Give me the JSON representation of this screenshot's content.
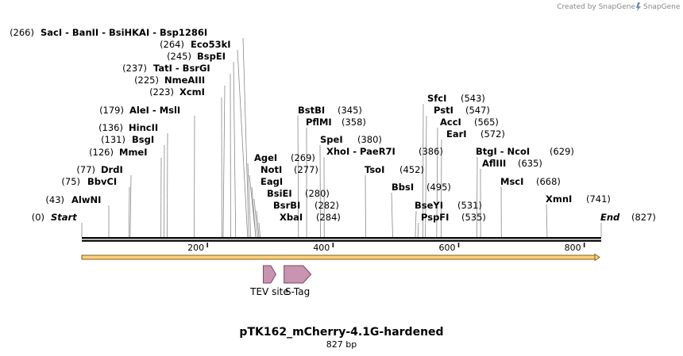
{
  "credit": "Created by SnapGene",
  "title": "pTK162_mCherry-4.1G-hardened",
  "subtitle": "827 bp",
  "sequence_length": 827,
  "axis_ticks": [
    "200",
    "400",
    "600",
    "800"
  ],
  "axis_tick_values": [
    200,
    400,
    600,
    800
  ],
  "start_label": {
    "num": "(0)",
    "name": "Start"
  },
  "end_label": {
    "num": "(827)",
    "name": "End"
  },
  "sites": [
    {
      "id": "alwni",
      "num": "(43)",
      "names": [
        "AlwNI"
      ],
      "pos": 43
    },
    {
      "id": "bbvci",
      "num": "(75)",
      "names": [
        "BbvCI"
      ],
      "pos": 75
    },
    {
      "id": "drdi",
      "num": "(77)",
      "names": [
        "DrdI"
      ],
      "pos": 77
    },
    {
      "id": "mmei",
      "num": "(126)",
      "names": [
        "MmeI"
      ],
      "pos": 126
    },
    {
      "id": "bsgi",
      "num": "(131)",
      "names": [
        "BsgI"
      ],
      "pos": 131
    },
    {
      "id": "hincii",
      "num": "(136)",
      "names": [
        "HincII"
      ],
      "pos": 136
    },
    {
      "id": "alei",
      "num": "(179)",
      "names": [
        "AleI",
        "MslI"
      ],
      "pos": 179
    },
    {
      "id": "xcmi",
      "num": "(223)",
      "names": [
        "XcmI"
      ],
      "pos": 223
    },
    {
      "id": "nmeaiii",
      "num": "(225)",
      "names": [
        "NmeAIII"
      ],
      "pos": 225
    },
    {
      "id": "tati",
      "num": "(237)",
      "names": [
        "TatI",
        "BsrGI"
      ],
      "pos": 237
    },
    {
      "id": "bspei",
      "num": "(245)",
      "names": [
        "BspEI"
      ],
      "pos": 245
    },
    {
      "id": "eco53ki",
      "num": "(264)",
      "names": [
        "Eco53kI"
      ],
      "pos": 264
    },
    {
      "id": "saci",
      "num": "(266)",
      "names": [
        "SacI",
        "BanII",
        "BsiHKAI",
        "Bsp1286I"
      ],
      "pos": 266
    },
    {
      "id": "agei",
      "num": "",
      "names": [
        "AgeI"
      ],
      "pos": 269
    },
    {
      "id": "noti",
      "num": "",
      "names": [
        "NotI"
      ],
      "pos": 277
    },
    {
      "id": "eagi",
      "num": "",
      "names": [
        "EagI"
      ],
      "pos": 277
    },
    {
      "id": "bsiei",
      "num": "(280)",
      "names": [
        "BsiEI"
      ],
      "pos": 280
    },
    {
      "id": "bsrbi",
      "num": "(282)",
      "names": [
        "BsrBI"
      ],
      "pos": 282
    },
    {
      "id": "xbai",
      "num": "(284)",
      "names": [
        "XbaI"
      ],
      "pos": 284
    },
    {
      "id": "agei-num",
      "num": "(269)",
      "names": [],
      "pos": 269
    },
    {
      "id": "noti-num",
      "num": "(277)",
      "names": [],
      "pos": 277
    },
    {
      "id": "bstbi",
      "num": "(345)",
      "names": [
        "BstBI"
      ],
      "pos": 345
    },
    {
      "id": "pflmi",
      "num": "(358)",
      "names": [
        "PflMI"
      ],
      "pos": 358
    },
    {
      "id": "spei",
      "num": "(380)",
      "names": [
        "SpeI"
      ],
      "pos": 380
    },
    {
      "id": "xhoi",
      "num": "(386)",
      "names": [
        "XhoI",
        "PaeR7I"
      ],
      "pos": 386
    },
    {
      "id": "tsoi",
      "num": "(452)",
      "names": [
        "TsoI"
      ],
      "pos": 452
    },
    {
      "id": "bbsi",
      "num": "(495)",
      "names": [
        "BbsI"
      ],
      "pos": 495
    },
    {
      "id": "bseyi",
      "num": "(531)",
      "names": [
        "BseYI"
      ],
      "pos": 531
    },
    {
      "id": "pspfi",
      "num": "(535)",
      "names": [
        "PspFI"
      ],
      "pos": 535
    },
    {
      "id": "sfci",
      "num": "(543)",
      "names": [
        "SfcI"
      ],
      "pos": 543
    },
    {
      "id": "psti",
      "num": "(547)",
      "names": [
        "PstI"
      ],
      "pos": 547
    },
    {
      "id": "acci",
      "num": "(565)",
      "names": [
        "AccI"
      ],
      "pos": 565
    },
    {
      "id": "eari",
      "num": "(572)",
      "names": [
        "EarI"
      ],
      "pos": 572
    },
    {
      "id": "btgi",
      "num": "(629)",
      "names": [
        "BtgI",
        "NcoI"
      ],
      "pos": 629
    },
    {
      "id": "aflii",
      "num": "(635)",
      "names": [
        "AflIII"
      ],
      "pos": 635
    },
    {
      "id": "msci",
      "num": "(668)",
      "names": [
        "MscI"
      ],
      "pos": 668
    },
    {
      "id": "xmni",
      "num": "(741)",
      "names": [
        "XmnI"
      ],
      "pos": 741
    }
  ],
  "features": [
    {
      "name": "TEV site",
      "start": 289,
      "end": 309,
      "color": "#c994b0"
    },
    {
      "name": "S-Tag",
      "start": 322,
      "end": 365,
      "color": "#c994b0"
    }
  ],
  "colors": {
    "backbone": "#000000",
    "orf_fill": "#fbd27a",
    "orf_stroke": "#8a5a1c",
    "feature_fill": "#c994b0",
    "feature_stroke": "#7a4a64"
  }
}
